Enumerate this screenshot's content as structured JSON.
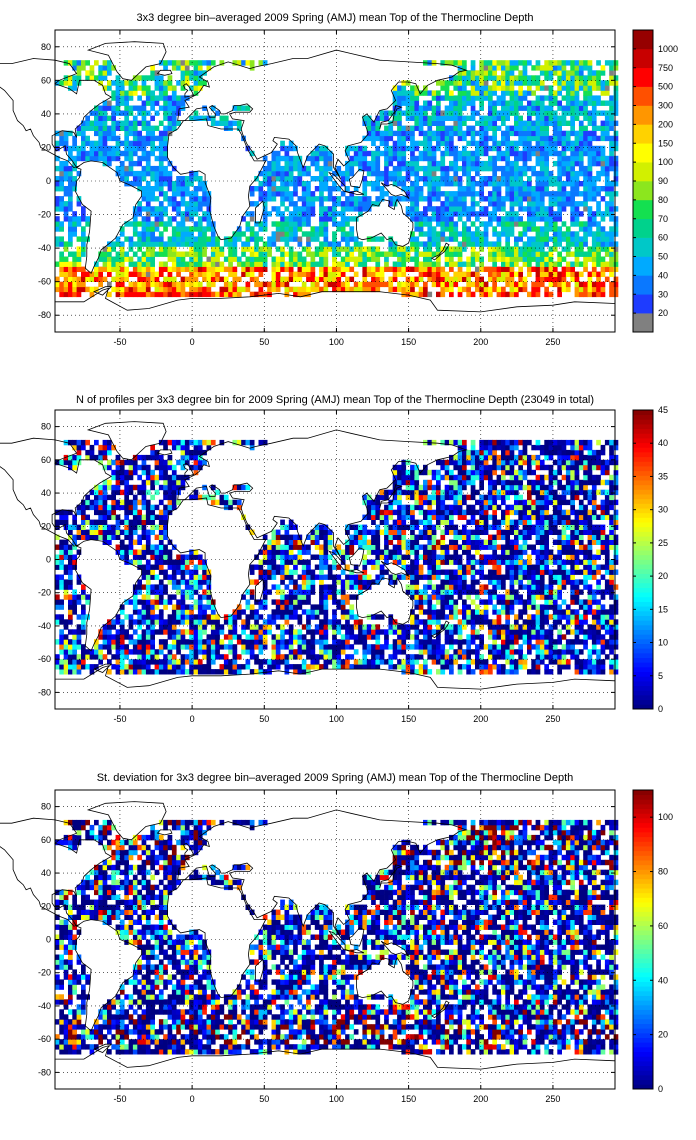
{
  "chart_data": [
    {
      "type": "heatmap",
      "title": "3x3 degree bin–averaged 2009 Spring (AMJ) mean Top of the Thermocline Depth",
      "xticks": [
        "-50",
        "0",
        "50",
        "100",
        "150",
        "200",
        "250"
      ],
      "yticks": [
        "80",
        "60",
        "40",
        "20",
        "0",
        "-20",
        "-40",
        "-60",
        "-80"
      ],
      "xlim": [
        -95,
        293
      ],
      "ylim": [
        -90,
        90
      ],
      "colorbar": {
        "kind": "categorical",
        "labels": [
          "20",
          "30",
          "40",
          "50",
          "60",
          "70",
          "80",
          "90",
          "100",
          "150",
          "200",
          "300",
          "500",
          "750",
          "1000"
        ],
        "colors": [
          "#808080",
          "#1e3cff",
          "#0a78ff",
          "#00aaff",
          "#00c8c8",
          "#00d28c",
          "#14e050",
          "#8ce61e",
          "#d2f000",
          "#ffff00",
          "#ffd200",
          "#ff9600",
          "#ff5000",
          "#ff0000",
          "#c80000",
          "#960000"
        ]
      },
      "bin_size_deg": 3,
      "grid": true
    },
    {
      "type": "heatmap",
      "title": "N of profiles per 3x3 degree bin for 2009 Spring (AMJ) mean Top of the Thermocline Depth  (23049 in total)",
      "xticks": [
        "-50",
        "0",
        "50",
        "100",
        "150",
        "200",
        "250"
      ],
      "yticks": [
        "80",
        "60",
        "40",
        "20",
        "0",
        "-20",
        "-40",
        "-60",
        "-80"
      ],
      "xlim": [
        -95,
        293
      ],
      "ylim": [
        -90,
        90
      ],
      "colorbar": {
        "kind": "continuous",
        "min": 0,
        "max": 45,
        "ticks": [
          "0",
          "5",
          "10",
          "15",
          "20",
          "25",
          "30",
          "35",
          "40",
          "45"
        ],
        "tick_values": [
          0,
          5,
          10,
          15,
          20,
          25,
          30,
          35,
          40,
          45
        ]
      },
      "bin_size_deg": 3,
      "grid": true
    },
    {
      "type": "heatmap",
      "title": "St. deviation for 3x3 degree bin–averaged 2009 Spring (AMJ) mean Top of the Thermocline Depth",
      "xticks": [
        "-50",
        "0",
        "50",
        "100",
        "150",
        "200",
        "250"
      ],
      "yticks": [
        "80",
        "60",
        "40",
        "20",
        "0",
        "-20",
        "-40",
        "-60",
        "-80"
      ],
      "xlim": [
        -95,
        293
      ],
      "ylim": [
        -90,
        90
      ],
      "colorbar": {
        "kind": "continuous",
        "min": 0,
        "max": 110,
        "ticks": [
          "0",
          "20",
          "40",
          "60",
          "80",
          "100"
        ],
        "tick_values": [
          0,
          20,
          40,
          60,
          80,
          100
        ]
      },
      "bin_size_deg": 3,
      "grid": true
    }
  ]
}
